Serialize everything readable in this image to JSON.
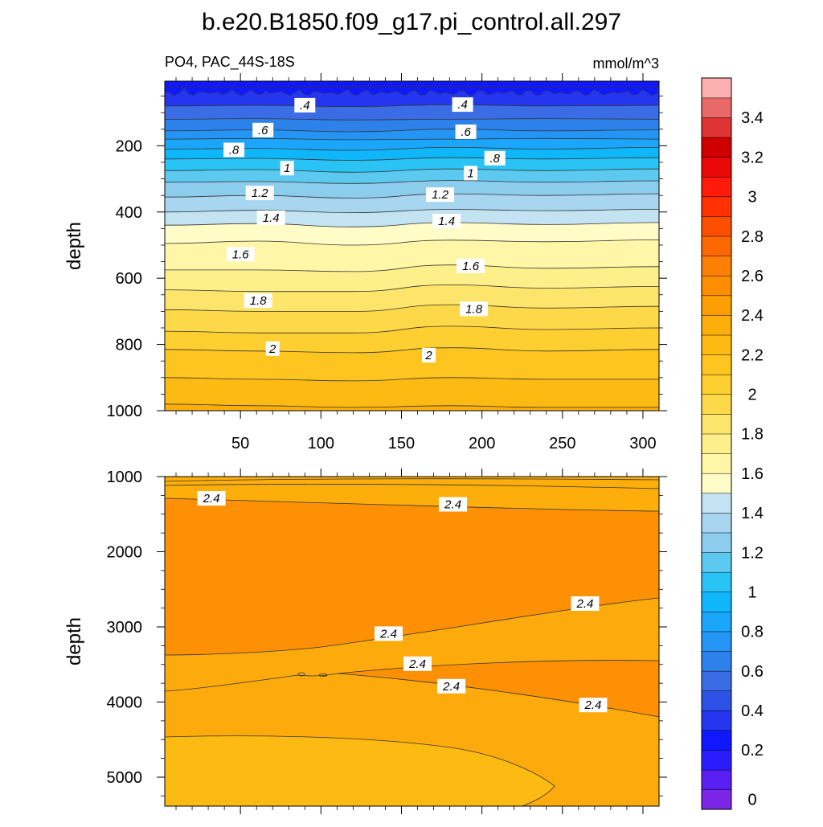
{
  "title": "b.e20.B1850.f09_g17.pi_control.all.297",
  "subtitle_left": "PO4, PAC_44S-18S",
  "subtitle_right": "mmol/m^3",
  "chart_data": [
    {
      "type": "contour",
      "panel": "upper",
      "ylabel": "depth",
      "xlabel": "",
      "xlim": [
        3,
        310
      ],
      "ylim": [
        1000,
        5
      ],
      "x_ticks": [
        50,
        100,
        150,
        200,
        250,
        300
      ],
      "y_ticks": [
        200,
        400,
        600,
        800,
        1000
      ],
      "grid": false,
      "contour_lines": [
        {
          "level": 0.2,
          "depth": [
            22,
            22,
            20,
            20,
            22,
            22
          ]
        },
        {
          "level": 0.4,
          "depth": [
            80,
            78,
            82,
            76,
            80,
            78
          ]
        },
        {
          "level": 0.5,
          "depth": [
            120,
            118,
            122,
            120,
            118,
            120
          ]
        },
        {
          "level": 0.6,
          "depth": [
            155,
            152,
            158,
            150,
            155,
            152
          ]
        },
        {
          "level": 0.7,
          "depth": [
            180,
            178,
            182,
            180,
            178,
            180
          ]
        },
        {
          "level": 0.8,
          "depth": [
            210,
            208,
            214,
            205,
            210,
            205
          ]
        },
        {
          "level": 0.9,
          "depth": [
            240,
            238,
            244,
            236,
            240,
            236
          ]
        },
        {
          "level": 1.0,
          "depth": [
            275,
            272,
            280,
            270,
            275,
            270
          ]
        },
        {
          "level": 1.1,
          "depth": [
            310,
            308,
            314,
            305,
            310,
            306
          ]
        },
        {
          "level": 1.2,
          "depth": [
            355,
            350,
            358,
            345,
            350,
            345
          ]
        },
        {
          "level": 1.3,
          "depth": [
            400,
            395,
            402,
            392,
            396,
            392
          ]
        },
        {
          "level": 1.4,
          "depth": [
            440,
            435,
            445,
            432,
            438,
            432
          ]
        },
        {
          "level": 1.5,
          "depth": [
            495,
            488,
            500,
            485,
            490,
            484
          ]
        },
        {
          "level": 1.6,
          "depth": [
            575,
            575,
            580,
            560,
            570,
            565
          ]
        },
        {
          "level": 1.7,
          "depth": [
            635,
            640,
            640,
            620,
            630,
            625
          ]
        },
        {
          "level": 1.8,
          "depth": [
            695,
            700,
            700,
            680,
            690,
            685
          ]
        },
        {
          "level": 1.9,
          "depth": [
            760,
            765,
            765,
            745,
            755,
            750
          ]
        },
        {
          "level": 2.0,
          "depth": [
            815,
            820,
            825,
            810,
            820,
            815
          ]
        },
        {
          "level": 2.1,
          "depth": [
            900,
            905,
            910,
            900,
            905,
            905
          ]
        },
        {
          "level": 2.2,
          "depth": [
            980,
            985,
            990,
            985,
            990,
            990
          ]
        }
      ],
      "contour_x": [
        3,
        60,
        120,
        180,
        240,
        310
      ],
      "labels": [
        {
          "text": ".4",
          "x": 90,
          "y": 80
        },
        {
          "text": ".4",
          "x": 188,
          "y": 78
        },
        {
          "text": ".6",
          "x": 64,
          "y": 155
        },
        {
          "text": ".6",
          "x": 190,
          "y": 160
        },
        {
          "text": ".8",
          "x": 46,
          "y": 215
        },
        {
          "text": ".8",
          "x": 208,
          "y": 240
        },
        {
          "text": "1",
          "x": 79,
          "y": 270
        },
        {
          "text": "1",
          "x": 193,
          "y": 285
        },
        {
          "text": "1.2",
          "x": 62,
          "y": 345
        },
        {
          "text": "1.2",
          "x": 174,
          "y": 350
        },
        {
          "text": "1.4",
          "x": 69,
          "y": 420
        },
        {
          "text": "1.4",
          "x": 178,
          "y": 430
        },
        {
          "text": "1.6",
          "x": 50,
          "y": 530
        },
        {
          "text": "1.6",
          "x": 193,
          "y": 565
        },
        {
          "text": "1.8",
          "x": 61,
          "y": 670
        },
        {
          "text": "1.8",
          "x": 195,
          "y": 695
        },
        {
          "text": "2",
          "x": 70,
          "y": 815
        },
        {
          "text": "2",
          "x": 167,
          "y": 835
        }
      ]
    },
    {
      "type": "contour",
      "panel": "lower",
      "ylabel": "depth",
      "xlabel": "",
      "xlim": [
        3,
        310
      ],
      "ylim": [
        5385,
        1000
      ],
      "x_ticks": [
        50,
        100,
        150,
        200,
        250,
        300
      ],
      "y_ticks": [
        1000,
        2000,
        3000,
        4000,
        5000
      ],
      "grid": false,
      "labels": [
        {
          "text": "2.4",
          "x": 32,
          "y": 1300
        },
        {
          "text": "2.4",
          "x": 182,
          "y": 1380
        },
        {
          "text": "2.4",
          "x": 264,
          "y": 2700
        },
        {
          "text": "2.4",
          "x": 142,
          "y": 3100
        },
        {
          "text": "2.4",
          "x": 160,
          "y": 3500
        },
        {
          "text": "2.4",
          "x": 181,
          "y": 3800
        },
        {
          "text": "2.4",
          "x": 269,
          "y": 4050
        }
      ]
    }
  ],
  "colorbar": {
    "labels": [
      "0",
      "0.2",
      "0.4",
      "0.6",
      "0.8",
      "1",
      "1.2",
      "1.4",
      "1.6",
      "1.8",
      "2",
      "2.2",
      "2.4",
      "2.6",
      "2.8",
      "3",
      "3.2",
      "3.4"
    ],
    "colors": [
      "#7b26e6",
      "#5a1ff2",
      "#2a1cff",
      "#0f18ff",
      "#2536f0",
      "#2f52e6",
      "#3a6ce5",
      "#2c82ea",
      "#2494f5",
      "#1ba6fb",
      "#10b6fa",
      "#2ac3f5",
      "#5ccaf0",
      "#8ccdee",
      "#a8d5ef",
      "#c3e3f3",
      "#fffcc8",
      "#fff6a8",
      "#fdf08a",
      "#fde46a",
      "#fdd94a",
      "#fecf30",
      "#fec520",
      "#fdba12",
      "#fdae0a",
      "#fd9f04",
      "#fd8e02",
      "#fd7f04",
      "#fd6800",
      "#fe4f00",
      "#ff3100",
      "#ff1a0a",
      "#ea0808",
      "#d10000",
      "#dd3333",
      "#e96969",
      "#fdb0b0"
    ]
  }
}
